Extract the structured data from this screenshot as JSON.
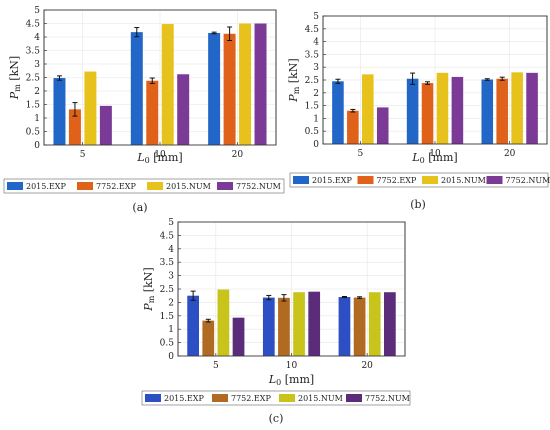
{
  "colors": {
    "2015_EXP": "#2266c7",
    "7752_EXP": "#e0621a",
    "2015_NUM": "#e8c21c",
    "7752_NUM": "#7a3a96",
    "2015_EXP_c": "#2d4fc4",
    "7752_EXP_c": "#b06a22",
    "2015_NUM_c": "#c8c41c",
    "7752_NUM_c": "#5a2c7a"
  },
  "chart_data": [
    {
      "type": "bar",
      "panel_label": "(a)",
      "categories": [
        "5",
        "10",
        "20"
      ],
      "ylim": [
        0,
        5
      ],
      "yticks": [
        "0",
        "0.5",
        "1",
        "1.5",
        "2",
        "2.5",
        "3",
        "3.5",
        "4",
        "4.5",
        "5"
      ],
      "ylabel": "P_m [kN]",
      "xlabel": "L_0 [mm]",
      "grid": true,
      "legend_placement": "bottom",
      "series": [
        {
          "name": "2015_EXP",
          "values": [
            2.48,
            4.18,
            4.15
          ],
          "err": [
            0.08,
            0.17,
            0.03
          ]
        },
        {
          "name": "7752_EXP",
          "values": [
            1.32,
            2.38,
            4.12
          ],
          "err": [
            0.25,
            0.1,
            0.25
          ]
        },
        {
          "name": "2015_NUM",
          "values": [
            2.72,
            4.48,
            4.5
          ],
          "err": [
            0,
            0,
            0
          ]
        },
        {
          "name": "7752_NUM",
          "values": [
            1.45,
            2.62,
            4.5
          ],
          "err": [
            0,
            0,
            0
          ]
        }
      ]
    },
    {
      "type": "bar",
      "panel_label": "(b)",
      "categories": [
        "5",
        "10",
        "20"
      ],
      "ylim": [
        0,
        5
      ],
      "yticks": [
        "0",
        "0.5",
        "1",
        "1.5",
        "2",
        "2.5",
        "3",
        "3.5",
        "4",
        "4.5",
        "5"
      ],
      "ylabel": "P_m [kN]",
      "xlabel": "L_0 [mm]",
      "grid": true,
      "legend_placement": "bottom",
      "series": [
        {
          "name": "2015_EXP",
          "values": [
            2.45,
            2.55,
            2.52
          ],
          "err": [
            0.08,
            0.22,
            0.03
          ]
        },
        {
          "name": "7752_EXP",
          "values": [
            1.3,
            2.38,
            2.55
          ],
          "err": [
            0.05,
            0.05,
            0.06
          ]
        },
        {
          "name": "2015_NUM",
          "values": [
            2.72,
            2.78,
            2.8
          ],
          "err": [
            0,
            0,
            0
          ]
        },
        {
          "name": "7752_NUM",
          "values": [
            1.43,
            2.62,
            2.78
          ],
          "err": [
            0,
            0,
            0
          ]
        }
      ]
    },
    {
      "type": "bar",
      "panel_label": "(c)",
      "categories": [
        "5",
        "10",
        "20"
      ],
      "ylim": [
        0,
        5
      ],
      "yticks": [
        "0",
        "0.5",
        "1",
        "1.5",
        "2",
        "2.5",
        "3",
        "3.5",
        "4",
        "4.5",
        "5"
      ],
      "ylabel": "P_m [kN]",
      "xlabel": "L_0 [mm]",
      "grid": true,
      "legend_placement": "bottom",
      "series": [
        {
          "name": "2015_EXP",
          "values": [
            2.25,
            2.18,
            2.2
          ],
          "err": [
            0.17,
            0.08,
            0.02
          ]
        },
        {
          "name": "7752_EXP",
          "values": [
            1.32,
            2.17,
            2.18
          ],
          "err": [
            0.05,
            0.12,
            0.03
          ]
        },
        {
          "name": "2015_NUM",
          "values": [
            2.48,
            2.38,
            2.38
          ],
          "err": [
            0,
            0,
            0
          ]
        },
        {
          "name": "7752_NUM",
          "values": [
            1.43,
            2.4,
            2.38
          ],
          "err": [
            0,
            0,
            0
          ]
        }
      ]
    }
  ]
}
